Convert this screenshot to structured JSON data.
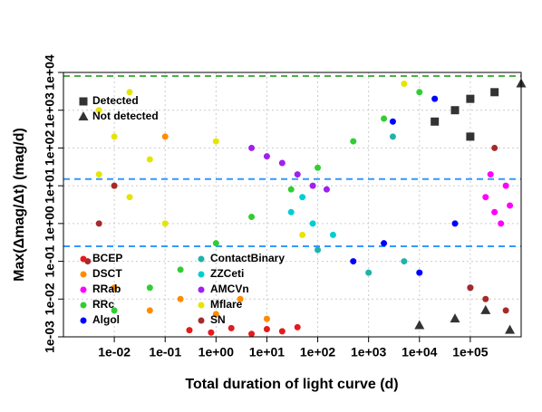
{
  "chart_data": {
    "type": "scatter",
    "xlabel": "Total duration of light curve (d)",
    "ylabel": "Max(Δmag/Δt) (mag/d)",
    "xscale": "log",
    "yscale": "log",
    "grid": true,
    "legend": "lower left",
    "xlim": [
      0.001,
      1000000
    ],
    "ylim": [
      0.001,
      10000
    ],
    "xticks": [
      {
        "value": 0.01,
        "label": "1e-02"
      },
      {
        "value": 0.1,
        "label": "1e-01"
      },
      {
        "value": 1,
        "label": "1e+00"
      },
      {
        "value": 10,
        "label": "1e+01"
      },
      {
        "value": 100,
        "label": "1e+02"
      },
      {
        "value": 1000,
        "label": "1e+03"
      },
      {
        "value": 10000,
        "label": "1e+04"
      },
      {
        "value": 100000,
        "label": "1e+05"
      }
    ],
    "yticks": [
      {
        "value": 0.001,
        "label": "1e-03"
      },
      {
        "value": 0.01,
        "label": "1e-02"
      },
      {
        "value": 0.1,
        "label": "1e-01"
      },
      {
        "value": 1,
        "label": "1e+00"
      },
      {
        "value": 10,
        "label": "1e+01"
      },
      {
        "value": 100,
        "label": "1e+02"
      },
      {
        "value": 1000,
        "label": "1e+03"
      },
      {
        "value": 10000,
        "label": "1e+04"
      }
    ],
    "reference_lines": [
      {
        "value": 8000,
        "color": "#4daf4a"
      },
      {
        "value": 15,
        "color": "#3399ff"
      },
      {
        "value": 0.25,
        "color": "#3399ff"
      }
    ],
    "series": [
      {
        "name": "BCEP",
        "color": "#e41a1c",
        "marker": "circle",
        "x": [
          0.3,
          0.8,
          2,
          5,
          10,
          20,
          40
        ],
        "values": [
          0.0015,
          0.0013,
          0.0017,
          0.0012,
          0.0016,
          0.0014,
          0.0018
        ]
      },
      {
        "name": "DSCT",
        "color": "#ff8c00",
        "marker": "circle",
        "x": [
          0.01,
          0.05,
          0.2,
          1,
          3,
          10,
          0.1
        ],
        "values": [
          0.02,
          0.005,
          0.01,
          0.004,
          0.01,
          0.003,
          200
        ]
      },
      {
        "name": "RRab",
        "color": "#ff00ff",
        "marker": "circle",
        "x": [
          200000,
          300000,
          500000,
          400000,
          250000,
          600000
        ],
        "values": [
          5,
          2,
          10,
          1,
          20,
          3
        ]
      },
      {
        "name": "RRc",
        "color": "#32cd32",
        "marker": "circle",
        "x": [
          0.01,
          0.05,
          0.2,
          1,
          5,
          30,
          100,
          500,
          2000,
          10000
        ],
        "values": [
          0.005,
          0.02,
          0.06,
          0.3,
          1.5,
          8,
          30,
          150,
          600,
          3000
        ]
      },
      {
        "name": "Algol",
        "color": "#0000ff",
        "marker": "circle",
        "x": [
          500,
          2000,
          10000,
          50000,
          100000,
          3000,
          20000
        ],
        "values": [
          0.1,
          0.3,
          0.05,
          1,
          0.02,
          500,
          2000
        ]
      },
      {
        "name": "ContactBinary",
        "color": "#20b2aa",
        "marker": "circle",
        "x": [
          100,
          1000,
          5000,
          3000,
          20000
        ],
        "values": [
          0.2,
          0.05,
          0.1,
          200,
          500
        ]
      },
      {
        "name": "ZZCeti",
        "color": "#00ced1",
        "marker": "circle",
        "x": [
          30,
          50,
          80,
          200
        ],
        "values": [
          2,
          5,
          1,
          0.5
        ]
      },
      {
        "name": "AMCVn",
        "color": "#a020f0",
        "marker": "circle",
        "x": [
          5,
          10,
          20,
          40,
          80,
          150
        ],
        "values": [
          100,
          60,
          40,
          20,
          10,
          8
        ]
      },
      {
        "name": "Mflare",
        "color": "#e5e500",
        "marker": "circle",
        "x": [
          0.005,
          0.01,
          0.02,
          0.05,
          0.1,
          0.005,
          0.02,
          1,
          50,
          5000
        ],
        "values": [
          20,
          200,
          5,
          50,
          1,
          1000,
          3000,
          150,
          0.5,
          5000
        ]
      },
      {
        "name": "SN",
        "color": "#a52a2a",
        "marker": "circle",
        "x": [
          0.003,
          0.005,
          0.01,
          200000,
          300000,
          100000,
          500000
        ],
        "values": [
          0.1,
          1,
          10,
          0.01,
          100,
          0.02,
          0.005
        ]
      },
      {
        "name": "Detected",
        "color": "#333333",
        "marker": "square",
        "x": [
          20000,
          50000,
          100000,
          300000,
          100000
        ],
        "values": [
          500,
          1000,
          2000,
          3000,
          200
        ]
      },
      {
        "name": "Not detected",
        "color": "#333333",
        "marker": "triangle",
        "x": [
          10000,
          50000,
          200000,
          600000,
          1000000
        ],
        "values": [
          0.002,
          0.003,
          0.005,
          0.0015,
          5000
        ]
      }
    ]
  }
}
